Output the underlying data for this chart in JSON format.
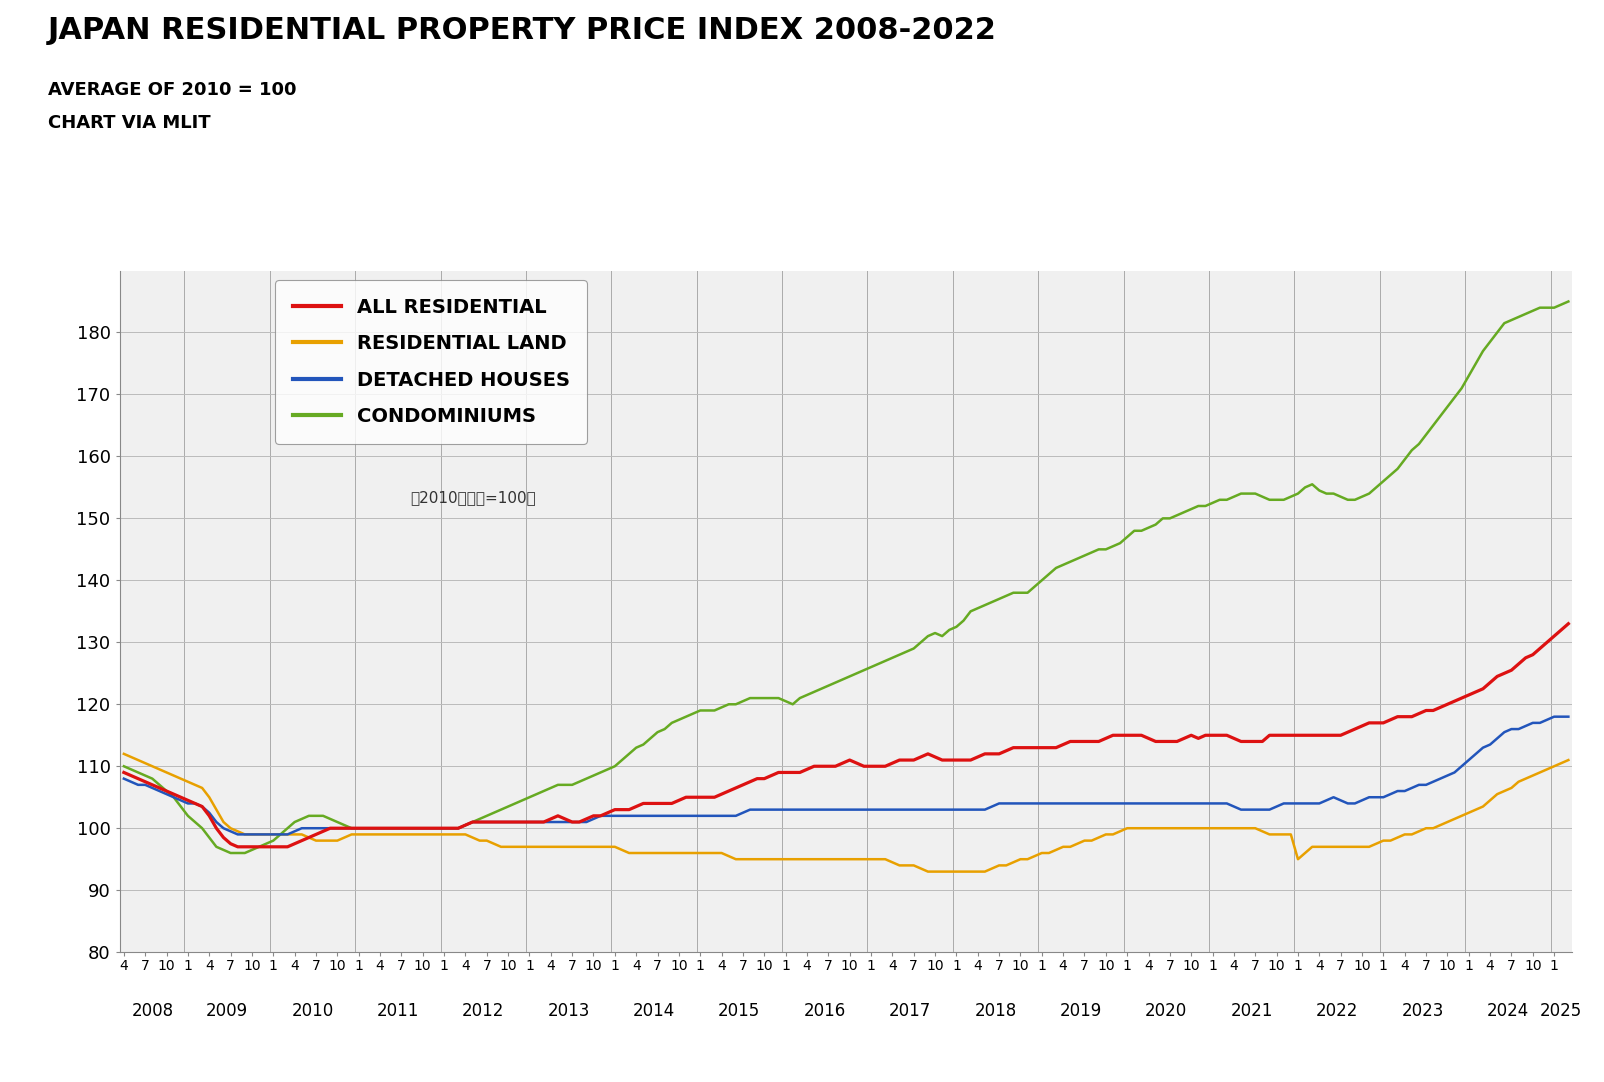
{
  "title": "JAPAN RESIDENTIAL PROPERTY PRICE INDEX 2008-2022",
  "subtitle1": "AVERAGE OF 2010 = 100",
  "subtitle2": "CHART VIA MLIT",
  "annotation": "（2010年平均=100）",
  "colors": {
    "all_residential": "#dd1111",
    "residential_land": "#e8a000",
    "detached_houses": "#2255bb",
    "condominiums": "#66aa22"
  },
  "legend_labels": [
    "ALL RESIDENTIAL",
    "RESIDENTIAL LAND",
    "DETACHED HOUSES",
    "CONDOMINIUMS"
  ],
  "ylim": [
    80,
    190
  ],
  "yticks": [
    80,
    90,
    100,
    110,
    120,
    130,
    140,
    150,
    160,
    170,
    180
  ],
  "background_color": "#ffffff",
  "series": {
    "all_residential": [
      109.0,
      108.5,
      108.0,
      107.5,
      107.0,
      106.5,
      106.0,
      105.5,
      105.0,
      104.5,
      104.0,
      103.5,
      102.0,
      100.0,
      98.5,
      97.5,
      97.0,
      97.0,
      97.0,
      97.0,
      97.0,
      97.0,
      97.0,
      97.0,
      97.5,
      98.0,
      98.5,
      99.0,
      99.5,
      100.0,
      100.0,
      100.0,
      100.0,
      100.0,
      100.0,
      100.0,
      100.0,
      100.0,
      100.0,
      100.0,
      100.0,
      100.0,
      100.0,
      100.0,
      100.0,
      100.0,
      100.0,
      100.0,
      100.5,
      101.0,
      101.0,
      101.0,
      101.0,
      101.0,
      101.0,
      101.0,
      101.0,
      101.0,
      101.0,
      101.0,
      101.5,
      102.0,
      101.5,
      101.0,
      101.0,
      101.5,
      102.0,
      102.0,
      102.5,
      103.0,
      103.0,
      103.0,
      103.5,
      104.0,
      104.0,
      104.0,
      104.0,
      104.0,
      104.5,
      105.0,
      105.0,
      105.0,
      105.0,
      105.0,
      105.5,
      106.0,
      106.5,
      107.0,
      107.5,
      108.0,
      108.0,
      108.5,
      109.0,
      109.0,
      109.0,
      109.0,
      109.5,
      110.0,
      110.0,
      110.0,
      110.0,
      110.5,
      111.0,
      110.5,
      110.0,
      110.0,
      110.0,
      110.0,
      110.5,
      111.0,
      111.0,
      111.0,
      111.5,
      112.0,
      111.5,
      111.0,
      111.0,
      111.0,
      111.0,
      111.0,
      111.5,
      112.0,
      112.0,
      112.0,
      112.5,
      113.0,
      113.0,
      113.0,
      113.0,
      113.0,
      113.0,
      113.0,
      113.5,
      114.0,
      114.0,
      114.0,
      114.0,
      114.0,
      114.5,
      115.0,
      115.0,
      115.0,
      115.0,
      115.0,
      114.5,
      114.0,
      114.0,
      114.0,
      114.0,
      114.5,
      115.0,
      114.5,
      115.0,
      115.0,
      115.0,
      115.0,
      114.5,
      114.0,
      114.0,
      114.0,
      114.0,
      115.0,
      115.0,
      115.0,
      115.0,
      115.0,
      115.0,
      115.0,
      115.0,
      115.0,
      115.0,
      115.0,
      115.5,
      116.0,
      116.5,
      117.0,
      117.0,
      117.0,
      117.5,
      118.0,
      118.0,
      118.0,
      118.5,
      119.0,
      119.0,
      119.5,
      120.0,
      120.5,
      121.0,
      121.5,
      122.0,
      122.5,
      123.5,
      124.5,
      125.0,
      125.5,
      126.5,
      127.5,
      128.0,
      129.0,
      130.0,
      131.0,
      132.0,
      133.0
    ],
    "residential_land": [
      112.0,
      111.5,
      111.0,
      110.5,
      110.0,
      109.5,
      109.0,
      108.5,
      108.0,
      107.5,
      107.0,
      106.5,
      105.0,
      103.0,
      101.0,
      100.0,
      99.5,
      99.0,
      99.0,
      99.0,
      99.0,
      99.0,
      99.0,
      99.0,
      99.0,
      99.0,
      98.5,
      98.0,
      98.0,
      98.0,
      98.0,
      98.5,
      99.0,
      99.0,
      99.0,
      99.0,
      99.0,
      99.0,
      99.0,
      99.0,
      99.0,
      99.0,
      99.0,
      99.0,
      99.0,
      99.0,
      99.0,
      99.0,
      99.0,
      98.5,
      98.0,
      98.0,
      97.5,
      97.0,
      97.0,
      97.0,
      97.0,
      97.0,
      97.0,
      97.0,
      97.0,
      97.0,
      97.0,
      97.0,
      97.0,
      97.0,
      97.0,
      97.0,
      97.0,
      97.0,
      96.5,
      96.0,
      96.0,
      96.0,
      96.0,
      96.0,
      96.0,
      96.0,
      96.0,
      96.0,
      96.0,
      96.0,
      96.0,
      96.0,
      96.0,
      95.5,
      95.0,
      95.0,
      95.0,
      95.0,
      95.0,
      95.0,
      95.0,
      95.0,
      95.0,
      95.0,
      95.0,
      95.0,
      95.0,
      95.0,
      95.0,
      95.0,
      95.0,
      95.0,
      95.0,
      95.0,
      95.0,
      95.0,
      94.5,
      94.0,
      94.0,
      94.0,
      93.5,
      93.0,
      93.0,
      93.0,
      93.0,
      93.0,
      93.0,
      93.0,
      93.0,
      93.0,
      93.5,
      94.0,
      94.0,
      94.5,
      95.0,
      95.0,
      95.5,
      96.0,
      96.0,
      96.5,
      97.0,
      97.0,
      97.5,
      98.0,
      98.0,
      98.5,
      99.0,
      99.0,
      99.5,
      100.0,
      100.0,
      100.0,
      100.0,
      100.0,
      100.0,
      100.0,
      100.0,
      100.0,
      100.0,
      100.0,
      100.0,
      100.0,
      100.0,
      100.0,
      100.0,
      100.0,
      100.0,
      100.0,
      99.5,
      99.0,
      99.0,
      99.0,
      99.0,
      95.0,
      96.0,
      97.0,
      97.0,
      97.0,
      97.0,
      97.0,
      97.0,
      97.0,
      97.0,
      97.0,
      97.5,
      98.0,
      98.0,
      98.5,
      99.0,
      99.0,
      99.5,
      100.0,
      100.0,
      100.5,
      101.0,
      101.5,
      102.0,
      102.5,
      103.0,
      103.5,
      104.5,
      105.5,
      106.0,
      106.5,
      107.5,
      108.0,
      108.5,
      109.0,
      109.5,
      110.0,
      110.5,
      111.0
    ],
    "detached_houses": [
      108.0,
      107.5,
      107.0,
      107.0,
      106.5,
      106.0,
      105.5,
      105.0,
      104.5,
      104.0,
      104.0,
      103.5,
      102.5,
      101.0,
      100.0,
      99.5,
      99.0,
      99.0,
      99.0,
      99.0,
      99.0,
      99.0,
      99.0,
      99.0,
      99.5,
      100.0,
      100.0,
      100.0,
      100.0,
      100.0,
      100.0,
      100.0,
      100.0,
      100.0,
      100.0,
      100.0,
      100.0,
      100.0,
      100.0,
      100.0,
      100.0,
      100.0,
      100.0,
      100.0,
      100.0,
      100.0,
      100.0,
      100.0,
      100.5,
      101.0,
      101.0,
      101.0,
      101.0,
      101.0,
      101.0,
      101.0,
      101.0,
      101.0,
      101.0,
      101.0,
      101.0,
      101.0,
      101.0,
      101.0,
      101.0,
      101.0,
      101.5,
      102.0,
      102.0,
      102.0,
      102.0,
      102.0,
      102.0,
      102.0,
      102.0,
      102.0,
      102.0,
      102.0,
      102.0,
      102.0,
      102.0,
      102.0,
      102.0,
      102.0,
      102.0,
      102.0,
      102.0,
      102.5,
      103.0,
      103.0,
      103.0,
      103.0,
      103.0,
      103.0,
      103.0,
      103.0,
      103.0,
      103.0,
      103.0,
      103.0,
      103.0,
      103.0,
      103.0,
      103.0,
      103.0,
      103.0,
      103.0,
      103.0,
      103.0,
      103.0,
      103.0,
      103.0,
      103.0,
      103.0,
      103.0,
      103.0,
      103.0,
      103.0,
      103.0,
      103.0,
      103.0,
      103.0,
      103.5,
      104.0,
      104.0,
      104.0,
      104.0,
      104.0,
      104.0,
      104.0,
      104.0,
      104.0,
      104.0,
      104.0,
      104.0,
      104.0,
      104.0,
      104.0,
      104.0,
      104.0,
      104.0,
      104.0,
      104.0,
      104.0,
      104.0,
      104.0,
      104.0,
      104.0,
      104.0,
      104.0,
      104.0,
      104.0,
      104.0,
      104.0,
      104.0,
      104.0,
      103.5,
      103.0,
      103.0,
      103.0,
      103.0,
      103.0,
      103.5,
      104.0,
      104.0,
      104.0,
      104.0,
      104.0,
      104.0,
      104.5,
      105.0,
      104.5,
      104.0,
      104.0,
      104.5,
      105.0,
      105.0,
      105.0,
      105.5,
      106.0,
      106.0,
      106.5,
      107.0,
      107.0,
      107.5,
      108.0,
      108.5,
      109.0,
      110.0,
      111.0,
      112.0,
      113.0,
      113.5,
      114.5,
      115.5,
      116.0,
      116.0,
      116.5,
      117.0,
      117.0,
      117.5,
      118.0,
      118.0,
      118.0
    ],
    "condominiums": [
      110.0,
      109.5,
      109.0,
      108.5,
      108.0,
      107.0,
      106.0,
      105.0,
      103.5,
      102.0,
      101.0,
      100.0,
      98.5,
      97.0,
      96.5,
      96.0,
      96.0,
      96.0,
      96.5,
      97.0,
      97.5,
      98.0,
      99.0,
      100.0,
      101.0,
      101.5,
      102.0,
      102.0,
      102.0,
      101.5,
      101.0,
      100.5,
      100.0,
      100.0,
      100.0,
      100.0,
      100.0,
      100.0,
      100.0,
      100.0,
      100.0,
      100.0,
      100.0,
      100.0,
      100.0,
      100.0,
      100.0,
      100.0,
      100.5,
      101.0,
      101.5,
      102.0,
      102.5,
      103.0,
      103.5,
      104.0,
      104.5,
      105.0,
      105.5,
      106.0,
      106.5,
      107.0,
      107.0,
      107.0,
      107.5,
      108.0,
      108.5,
      109.0,
      109.5,
      110.0,
      111.0,
      112.0,
      113.0,
      113.5,
      114.5,
      115.5,
      116.0,
      117.0,
      117.5,
      118.0,
      118.5,
      119.0,
      119.0,
      119.0,
      119.5,
      120.0,
      120.0,
      120.5,
      121.0,
      121.0,
      121.0,
      121.0,
      121.0,
      120.5,
      120.0,
      121.0,
      121.5,
      122.0,
      122.5,
      123.0,
      123.5,
      124.0,
      124.5,
      125.0,
      125.5,
      126.0,
      126.5,
      127.0,
      127.5,
      128.0,
      128.5,
      129.0,
      130.0,
      131.0,
      131.5,
      131.0,
      132.0,
      132.5,
      133.5,
      135.0,
      135.5,
      136.0,
      136.5,
      137.0,
      137.5,
      138.0,
      138.0,
      138.0,
      139.0,
      140.0,
      141.0,
      142.0,
      142.5,
      143.0,
      143.5,
      144.0,
      144.5,
      145.0,
      145.0,
      145.5,
      146.0,
      147.0,
      148.0,
      148.0,
      148.5,
      149.0,
      150.0,
      150.0,
      150.5,
      151.0,
      151.5,
      152.0,
      152.0,
      152.5,
      153.0,
      153.0,
      153.5,
      154.0,
      154.0,
      154.0,
      153.5,
      153.0,
      153.0,
      153.0,
      153.5,
      154.0,
      155.0,
      155.5,
      154.5,
      154.0,
      154.0,
      153.5,
      153.0,
      153.0,
      153.5,
      154.0,
      155.0,
      156.0,
      157.0,
      158.0,
      159.5,
      161.0,
      162.0,
      163.5,
      165.0,
      166.5,
      168.0,
      169.5,
      171.0,
      173.0,
      175.0,
      177.0,
      178.5,
      180.0,
      181.5,
      182.0,
      182.5,
      183.0,
      183.5,
      184.0,
      184.0,
      184.0,
      184.5,
      185.0
    ]
  }
}
